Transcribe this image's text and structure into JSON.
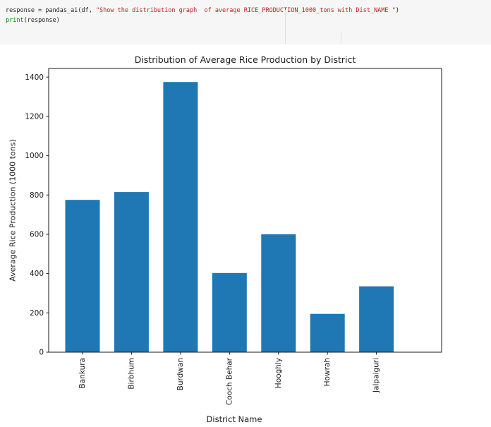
{
  "code_cell": {
    "colors": {
      "plain": "#1f1f1f",
      "string": "#ba2121",
      "keyword": "#008000"
    },
    "lines": [
      {
        "segments": [
          {
            "style": "plain",
            "text": "response = pandas_ai(df, "
          },
          {
            "style": "string",
            "text": "\"Show the distribution graph  of average RICE_PRODUCTION_1000_tons with Dist_NAME \""
          },
          {
            "style": "plain",
            "text": ")"
          }
        ]
      },
      {
        "segments": [
          {
            "style": "keyword",
            "text": "print"
          },
          {
            "style": "plain",
            "text": "(response)"
          }
        ]
      }
    ]
  },
  "chart_data": {
    "type": "bar",
    "title": "Distribution of Average Rice Production by District",
    "xlabel": "District Name",
    "ylabel": "Average Rice Production (1000 tons)",
    "categories": [
      "Bankura",
      "Birbhum",
      "Burdwan",
      "Cooch Behar",
      "Hooghly",
      "Howrah",
      "Jalpaiguri"
    ],
    "values": [
      775,
      815,
      1375,
      403,
      600,
      195,
      335
    ],
    "yticks": [
      0,
      200,
      400,
      600,
      800,
      1000,
      1200,
      1400
    ],
    "ylim": [
      0,
      1444
    ],
    "x_tick_rotation": 90,
    "bar_color": "#1f77b4",
    "axis_color": "#1a1a1a",
    "background": "#ffffff",
    "grid": false,
    "legend": "none"
  }
}
